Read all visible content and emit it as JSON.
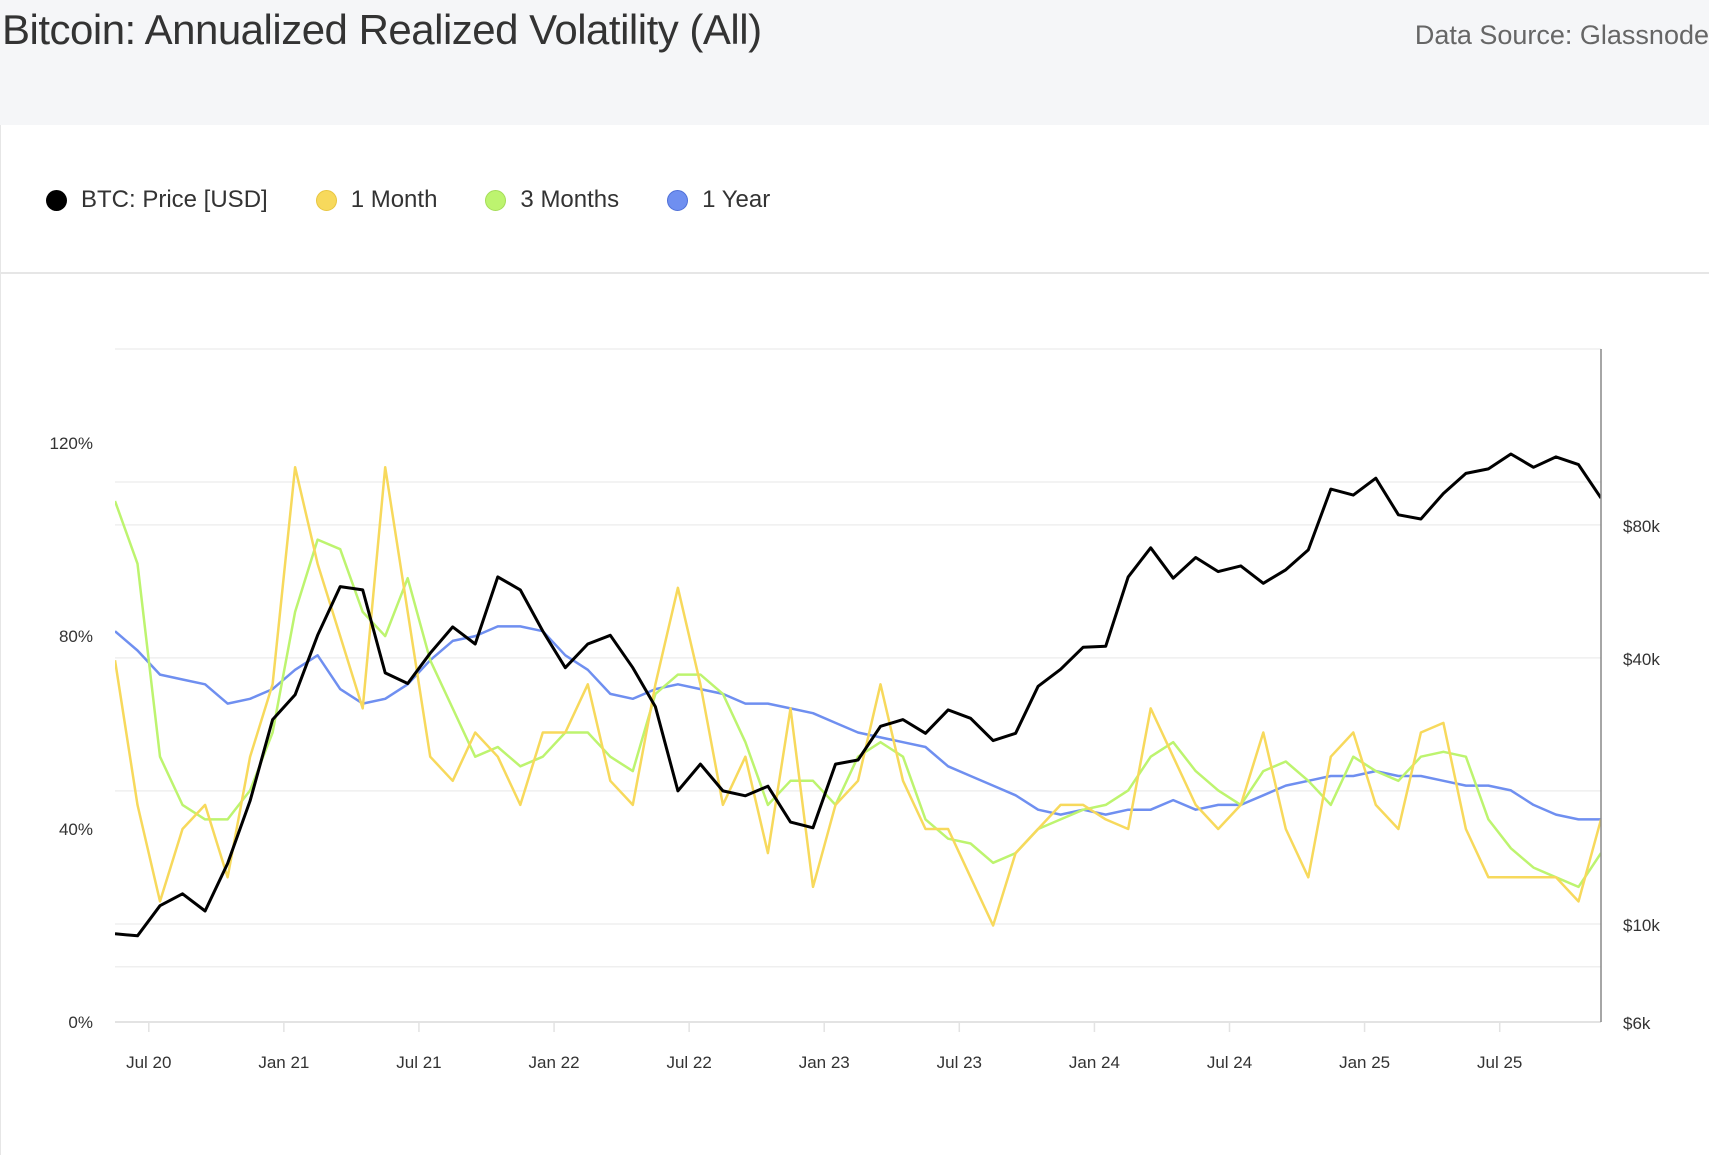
{
  "header": {
    "title": "Bitcoin: Annualized Realized Volatility (All)",
    "source": "Data Source: Glassnode"
  },
  "legend": [
    {
      "label": "BTC: Price [USD]",
      "color": "#000000"
    },
    {
      "label": "1 Month",
      "color": "#f7d95c"
    },
    {
      "label": "3 Months",
      "color": "#bdf46f"
    },
    {
      "label": "1 Year",
      "color": "#6f8ff0"
    }
  ],
  "chart_data": {
    "type": "line",
    "title": "Bitcoin: Annualized Realized Volatility (All)",
    "x_ticks": [
      "Jul 20",
      "Jan 21",
      "Jul 21",
      "Jan 22",
      "Jul 22",
      "Jan 23",
      "Jul 23",
      "Jan 24",
      "Jul 24",
      "Jan 25",
      "Jul 25"
    ],
    "y_left": {
      "ticks": [
        "0%",
        "40%",
        "80%",
        "120%"
      ],
      "tick_values": [
        0,
        40,
        80,
        120
      ],
      "range": [
        0,
        139.5
      ],
      "unit": "%"
    },
    "y_right": {
      "scale": "log",
      "ticks": [
        "$6k",
        "$10k",
        "$40k",
        "$80k"
      ],
      "tick_values": [
        6000,
        10000,
        40000,
        80000
      ],
      "gridlines": [
        8000,
        10000,
        20000,
        40000,
        80000,
        100000,
        200000
      ],
      "range": [
        6000,
        200000
      ]
    },
    "x_range": [
      "2020-05",
      "2025-11"
    ],
    "x": [
      "2020-05",
      "2020-06",
      "2020-07",
      "2020-08",
      "2020-09",
      "2020-10",
      "2020-11",
      "2020-12",
      "2021-01",
      "2021-02",
      "2021-03",
      "2021-04",
      "2021-05",
      "2021-06",
      "2021-07",
      "2021-08",
      "2021-09",
      "2021-10",
      "2021-11",
      "2021-12",
      "2022-01",
      "2022-02",
      "2022-03",
      "2022-04",
      "2022-05",
      "2022-06",
      "2022-07",
      "2022-08",
      "2022-09",
      "2022-10",
      "2022-11",
      "2022-12",
      "2023-01",
      "2023-02",
      "2023-03",
      "2023-04",
      "2023-05",
      "2023-06",
      "2023-07",
      "2023-08",
      "2023-09",
      "2023-10",
      "2023-11",
      "2023-12",
      "2024-01",
      "2024-02",
      "2024-03",
      "2024-04",
      "2024-05",
      "2024-06",
      "2024-07",
      "2024-08",
      "2024-09",
      "2024-10",
      "2024-11",
      "2024-12",
      "2025-01",
      "2025-02",
      "2025-03",
      "2025-04",
      "2025-05",
      "2025-06",
      "2025-07",
      "2025-08",
      "2025-09",
      "2025-10",
      "2025-11"
    ],
    "series": [
      {
        "name": "BTC: Price [USD]",
        "axis": "right",
        "color": "#000000",
        "values": [
          9500,
          9400,
          11000,
          11700,
          10700,
          13700,
          19000,
          29000,
          33000,
          45000,
          58000,
          57000,
          37000,
          35000,
          41000,
          47000,
          43000,
          61000,
          57000,
          46000,
          38000,
          43000,
          45000,
          38000,
          31000,
          20000,
          23000,
          20000,
          19500,
          20500,
          17000,
          16500,
          23000,
          23500,
          28000,
          29000,
          27000,
          30500,
          29200,
          26000,
          27000,
          34500,
          37700,
          42300,
          42500,
          61000,
          71000,
          60600,
          67500,
          62700,
          64600,
          59000,
          63300,
          70200,
          96400,
          93400,
          102000,
          84300,
          82500,
          94200,
          104600,
          107100,
          115700,
          108000,
          114000,
          109500,
          92000
        ]
      },
      {
        "name": "1 Month",
        "axis": "left",
        "color": "#f7d95c",
        "values": [
          75,
          45,
          25,
          40,
          45,
          30,
          55,
          70,
          115,
          95,
          80,
          65,
          115,
          85,
          55,
          50,
          60,
          55,
          45,
          60,
          60,
          70,
          50,
          45,
          70,
          90,
          70,
          45,
          55,
          35,
          65,
          28,
          45,
          50,
          70,
          50,
          40,
          40,
          30,
          20,
          35,
          40,
          45,
          45,
          42,
          40,
          65,
          55,
          45,
          40,
          45,
          60,
          40,
          30,
          55,
          60,
          45,
          40,
          60,
          62,
          40,
          30,
          30,
          30,
          30,
          25,
          42
        ]
      },
      {
        "name": "3 Months",
        "axis": "left",
        "color": "#bdf46f",
        "values": [
          108,
          95,
          55,
          45,
          42,
          42,
          48,
          60,
          85,
          100,
          98,
          85,
          80,
          92,
          75,
          65,
          55,
          57,
          53,
          55,
          60,
          60,
          55,
          52,
          68,
          72,
          72,
          68,
          58,
          45,
          50,
          50,
          45,
          55,
          58,
          55,
          42,
          38,
          37,
          33,
          35,
          40,
          42,
          44,
          45,
          48,
          55,
          58,
          52,
          48,
          45,
          52,
          54,
          50,
          45,
          55,
          52,
          50,
          55,
          56,
          55,
          42,
          36,
          32,
          30,
          28,
          35
        ]
      },
      {
        "name": "1 Year",
        "axis": "left",
        "color": "#6f8ff0",
        "values": [
          81,
          77,
          72,
          71,
          70,
          66,
          67,
          69,
          73,
          76,
          69,
          66,
          67,
          70,
          75,
          79,
          80,
          82,
          82,
          81,
          76,
          73,
          68,
          67,
          69,
          70,
          69,
          68,
          66,
          66,
          65,
          64,
          62,
          60,
          59,
          58,
          57,
          53,
          51,
          49,
          47,
          44,
          43,
          44,
          43,
          44,
          44,
          46,
          44,
          45,
          45,
          47,
          49,
          50,
          51,
          51,
          52,
          51,
          51,
          50,
          49,
          49,
          48,
          45,
          43,
          42,
          42
        ]
      }
    ]
  }
}
